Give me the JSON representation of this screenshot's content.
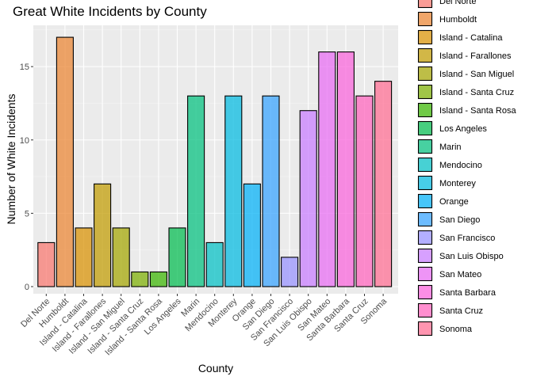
{
  "chart_data": {
    "type": "bar",
    "title": "Great White Incidents by County",
    "xlabel": "County",
    "ylabel": "Number of White Incidents",
    "ylim": [
      0,
      18.3
    ],
    "yticks": [
      0,
      5,
      10,
      15
    ],
    "grid": true,
    "legend_position": "right",
    "categories": [
      "Del Norte",
      "Humboldt",
      "Island - Catalina",
      "Island - Farallones",
      "Island - San Miguel",
      "Island - Santa Cruz",
      "Island - Santa Rosa",
      "Los Angeles",
      "Marin",
      "Mendocino",
      "Monterey",
      "Orange",
      "San Diego",
      "San Francisco",
      "San Luis Obispo",
      "San Mateo",
      "Santa Barbara",
      "Santa Cruz",
      "Sonoma"
    ],
    "values": [
      3,
      17,
      4,
      7,
      4,
      1,
      1,
      4,
      13,
      3,
      13,
      7,
      13,
      2,
      12,
      16,
      16,
      13,
      14
    ],
    "colors": [
      "#F8766D",
      "#E18A00",
      "#BE9C00",
      "#8CAB00",
      "#24B700",
      "#00BE70",
      "#00C1AB",
      "#00BBDA",
      "#00ACFC",
      "#8B93FF",
      "#D575FE",
      "#F962DD",
      "#FF65AC"
    ]
  }
}
